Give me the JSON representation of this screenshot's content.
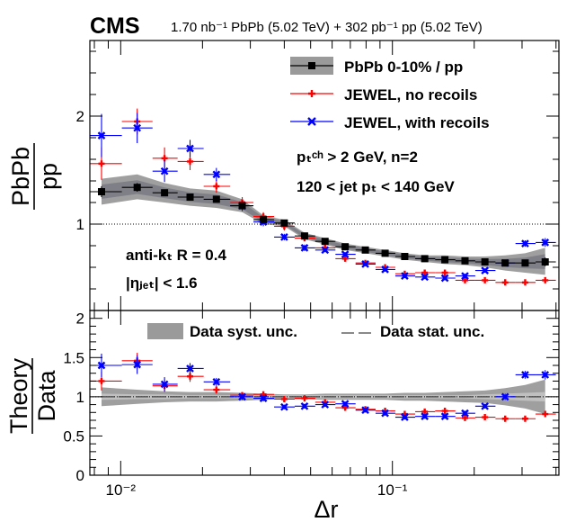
{
  "header": {
    "experiment": "CMS",
    "luminosity_text": "1.70 nb⁻¹ PbPb (5.02 TeV) + 302 pb⁻¹ pp (5.02 TeV)"
  },
  "colors": {
    "data": "#000000",
    "data_band": "#9a9a9a",
    "data_band_dark": "#58586c",
    "no_recoils": "#ff0000",
    "with_recoils": "#0000ff",
    "stat_band": "#c8c8c8"
  },
  "chart_data": [
    {
      "type": "scatter",
      "panel": "top",
      "xlabel": "Δr",
      "ylabel": "PbPb/pp",
      "ylabel_num": "PbPb",
      "ylabel_den": "pp",
      "xscale": "log",
      "xlim": [
        0.0077,
        0.41
      ],
      "ylim": [
        0.2,
        2.7
      ],
      "y_ticks": [
        "1",
        "2"
      ],
      "reference_line": 1,
      "legend": {
        "placement": "top-right",
        "entries": [
          "PbPb 0-10% / pp",
          "JEWEL, no recoils",
          "JEWEL, with recoils"
        ]
      },
      "annotations": {
        "cut1": "pₜᶜʰ > 2 GeV, n=2",
        "cut2": "120 < jet pₜ < 140 GeV",
        "algo": "anti-kₜ R = 0.4",
        "eta": "|ηⱼₑₜ| < 1.6"
      },
      "x": [
        0.0085,
        0.0115,
        0.0145,
        0.018,
        0.0225,
        0.028,
        0.0335,
        0.04,
        0.0475,
        0.0565,
        0.067,
        0.0795,
        0.094,
        0.111,
        0.1315,
        0.156,
        0.185,
        0.219,
        0.26,
        0.308,
        0.365
      ],
      "x_lo": [
        0.0077,
        0.0101,
        0.0131,
        0.0162,
        0.0202,
        0.0253,
        0.0308,
        0.0367,
        0.0437,
        0.052,
        0.0617,
        0.0732,
        0.0867,
        0.1025,
        0.1213,
        0.1437,
        0.1705,
        0.2018,
        0.2395,
        0.2838,
        0.3365
      ],
      "x_hi": [
        0.0101,
        0.0131,
        0.0162,
        0.0202,
        0.0253,
        0.0308,
        0.0367,
        0.0437,
        0.052,
        0.0617,
        0.0732,
        0.0867,
        0.1025,
        0.1213,
        0.1437,
        0.1705,
        0.2018,
        0.2395,
        0.2838,
        0.3365,
        0.3995
      ],
      "series": [
        {
          "name": "PbPb 0-10% / pp",
          "values": [
            1.3,
            1.34,
            1.29,
            1.25,
            1.23,
            1.17,
            1.04,
            1.01,
            0.89,
            0.84,
            0.79,
            0.76,
            0.73,
            0.7,
            0.68,
            0.67,
            0.66,
            0.65,
            0.64,
            0.64,
            0.65
          ],
          "syst_lo": [
            1.18,
            1.23,
            1.2,
            1.17,
            1.15,
            1.11,
            1.0,
            0.98,
            0.86,
            0.81,
            0.76,
            0.73,
            0.7,
            0.67,
            0.65,
            0.63,
            0.62,
            0.6,
            0.57,
            0.55,
            0.53
          ],
          "syst_hi": [
            1.42,
            1.46,
            1.38,
            1.33,
            1.31,
            1.23,
            1.08,
            1.04,
            0.92,
            0.87,
            0.82,
            0.79,
            0.76,
            0.73,
            0.71,
            0.71,
            0.7,
            0.7,
            0.71,
            0.73,
            0.78
          ],
          "stat_err": [
            0.05,
            0.04,
            0.03,
            0.03,
            0.02,
            0.02,
            0.02,
            0.02,
            0.02,
            0.02,
            0.02,
            0.02,
            0.02,
            0.02,
            0.02,
            0.02,
            0.02,
            0.02,
            0.03,
            0.03,
            0.04
          ]
        },
        {
          "name": "JEWEL, no recoils",
          "values": [
            1.56,
            1.95,
            1.61,
            1.58,
            1.35,
            1.2,
            1.07,
            0.98,
            0.87,
            0.78,
            0.68,
            0.64,
            0.6,
            0.54,
            0.55,
            0.55,
            0.48,
            0.48,
            0.46,
            0.46,
            0.48
          ],
          "err": [
            0.15,
            0.12,
            0.1,
            0.08,
            0.06,
            0.05,
            0.04,
            0.04,
            0.03,
            0.03,
            0.02,
            0.02,
            0.02,
            0.02,
            0.02,
            0.02,
            0.02,
            0.02,
            0.02,
            0.02,
            0.02
          ]
        },
        {
          "name": "JEWEL, with recoils",
          "values": [
            1.82,
            1.89,
            1.49,
            1.7,
            1.46,
            1.17,
            1.02,
            0.88,
            0.78,
            0.76,
            0.72,
            0.63,
            0.58,
            0.52,
            0.51,
            0.5,
            0.52,
            0.57,
            0.64,
            0.82,
            0.83
          ],
          "err": [
            0.2,
            0.14,
            0.1,
            0.08,
            0.06,
            0.05,
            0.04,
            0.03,
            0.03,
            0.02,
            0.02,
            0.02,
            0.02,
            0.02,
            0.02,
            0.02,
            0.02,
            0.02,
            0.02,
            0.03,
            0.04
          ]
        }
      ]
    },
    {
      "type": "scatter",
      "panel": "bottom",
      "xlabel": "Δr",
      "ylabel": "Theory/Data",
      "ylabel_num": "Theory",
      "ylabel_den": "Data",
      "xscale": "log",
      "xlim": [
        0.0077,
        0.41
      ],
      "ylim": [
        0,
        2.1
      ],
      "y_ticks": [
        "0",
        "0.5",
        "1",
        "1.5",
        "2"
      ],
      "x_ticks": [
        "10⁻²",
        "10⁻¹"
      ],
      "reference_line": 1,
      "legend": {
        "placement": "top",
        "entries": [
          "Data syst. unc.",
          "Data stat. unc."
        ]
      },
      "syst_lo": [
        0.88,
        0.91,
        0.93,
        0.94,
        0.94,
        0.95,
        0.96,
        0.97,
        0.97,
        0.96,
        0.96,
        0.96,
        0.96,
        0.95,
        0.95,
        0.94,
        0.93,
        0.92,
        0.89,
        0.85,
        0.78
      ],
      "syst_hi": [
        1.12,
        1.09,
        1.07,
        1.06,
        1.06,
        1.05,
        1.04,
        1.03,
        1.03,
        1.04,
        1.04,
        1.04,
        1.04,
        1.05,
        1.05,
        1.06,
        1.07,
        1.08,
        1.11,
        1.15,
        1.22
      ],
      "stat_lo": [
        0.96,
        0.97,
        0.97,
        0.98,
        0.98,
        0.98,
        0.98,
        0.98,
        0.98,
        0.98,
        0.98,
        0.98,
        0.98,
        0.98,
        0.98,
        0.98,
        0.98,
        0.97,
        0.96,
        0.95,
        0.94
      ],
      "stat_hi": [
        1.04,
        1.03,
        1.03,
        1.02,
        1.02,
        1.02,
        1.02,
        1.02,
        1.02,
        1.02,
        1.02,
        1.02,
        1.02,
        1.02,
        1.02,
        1.02,
        1.02,
        1.03,
        1.04,
        1.05,
        1.06
      ],
      "series": [
        {
          "name": "JEWEL, no recoils",
          "values": [
            1.2,
            1.46,
            1.14,
            1.26,
            1.09,
            1.02,
            1.03,
            0.97,
            0.98,
            0.93,
            0.86,
            0.84,
            0.82,
            0.78,
            0.81,
            0.82,
            0.73,
            0.74,
            0.72,
            0.72,
            0.78
          ],
          "err": [
            0.12,
            0.1,
            0.08,
            0.07,
            0.05,
            0.04,
            0.04,
            0.03,
            0.03,
            0.03,
            0.03,
            0.03,
            0.03,
            0.03,
            0.03,
            0.03,
            0.03,
            0.03,
            0.03,
            0.03,
            0.04
          ]
        },
        {
          "name": "JEWEL, with recoils",
          "values": [
            1.4,
            1.41,
            1.16,
            1.36,
            1.19,
            1.0,
            0.98,
            0.87,
            0.88,
            0.9,
            0.91,
            0.83,
            0.79,
            0.74,
            0.75,
            0.75,
            0.79,
            0.88,
            1.0,
            1.28,
            1.28
          ],
          "err": [
            0.15,
            0.12,
            0.09,
            0.07,
            0.05,
            0.04,
            0.04,
            0.03,
            0.03,
            0.03,
            0.03,
            0.03,
            0.03,
            0.03,
            0.03,
            0.03,
            0.03,
            0.03,
            0.04,
            0.05,
            0.06
          ]
        }
      ]
    }
  ]
}
